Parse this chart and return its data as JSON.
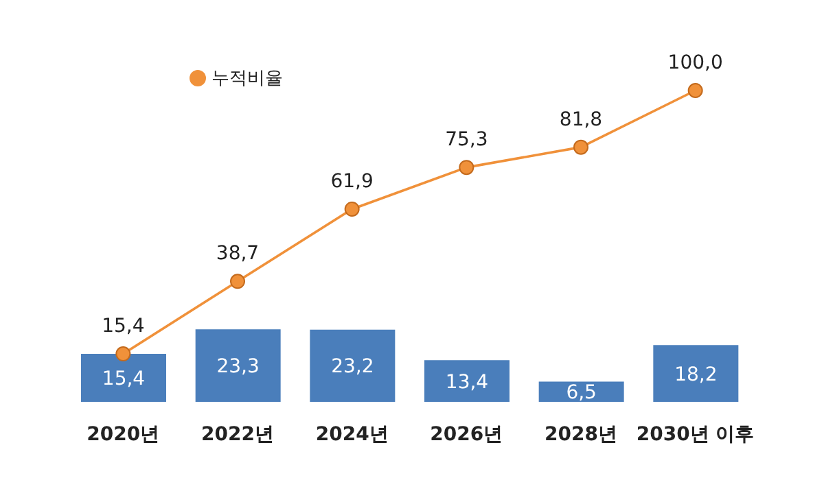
{
  "chart_data": {
    "type": "bar",
    "categories": [
      "2020년",
      "2022년",
      "2024년",
      "2026년",
      "2028년",
      "2030년 이후"
    ],
    "series": [
      {
        "color": "#4a7ebb",
        "values": [
          15.4,
          23.3,
          23.2,
          13.4,
          6.5,
          18.2
        ],
        "value_labels": [
          "15,4",
          "23,3",
          "23,2",
          "13,4",
          "6,5",
          "18,2"
        ]
      },
      {
        "type": "line",
        "name": "누적비율",
        "color": "#f0913a",
        "values": [
          15.4,
          38.7,
          61.9,
          75.3,
          81.8,
          100.0
        ],
        "value_labels": [
          "15,4",
          "38,7",
          "61,9",
          "75,3",
          "81,8",
          "100,0"
        ]
      }
    ],
    "legend": "top left",
    "marker": "circle",
    "grid": false
  }
}
